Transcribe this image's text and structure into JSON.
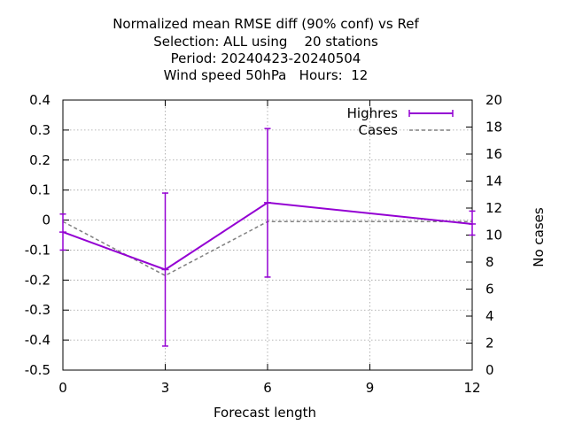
{
  "chart_data": {
    "type": "line",
    "title_lines": [
      "Normalized mean RMSE diff (90% conf) vs Ref",
      "Selection: ALL using    20 stations",
      "Period: 20240423-20240504",
      "Wind speed 50hPa   Hours:  12"
    ],
    "xlabel": "Forecast length",
    "ylabel": "",
    "y2label": "No cases",
    "xlim": [
      0,
      12
    ],
    "ylim": [
      -0.5,
      0.4
    ],
    "y2lim": [
      0,
      20
    ],
    "x_ticks": [
      0,
      3,
      6,
      9,
      12
    ],
    "y_ticks": [
      -0.5,
      -0.4,
      -0.3,
      -0.2,
      -0.1,
      0,
      0.1,
      0.2,
      0.3,
      0.4
    ],
    "y_tick_labels": [
      "-0.5",
      "-0.4",
      "-0.3",
      "-0.2",
      "-0.1",
      "0",
      "0.1",
      "0.2",
      "0.3",
      "0.4"
    ],
    "y2_ticks": [
      0,
      2,
      4,
      6,
      8,
      10,
      12,
      14,
      16,
      18,
      20
    ],
    "grid": true,
    "legend_position": "top-right",
    "series": [
      {
        "name": "Highres",
        "axis": "y",
        "color": "#9400d3",
        "style": "solid-errorbars",
        "x": [
          0,
          3,
          6,
          12
        ],
        "y": [
          -0.04,
          -0.165,
          0.058,
          -0.013
        ],
        "err_low": [
          -0.1,
          -0.42,
          -0.19,
          -0.05
        ],
        "err_high": [
          0.02,
          0.09,
          0.305,
          0.03
        ]
      },
      {
        "name": "Cases",
        "axis": "y2",
        "color": "#808080",
        "style": "dashed",
        "x": [
          0,
          3,
          6,
          12
        ],
        "y": [
          11,
          7,
          11,
          11
        ]
      }
    ]
  }
}
